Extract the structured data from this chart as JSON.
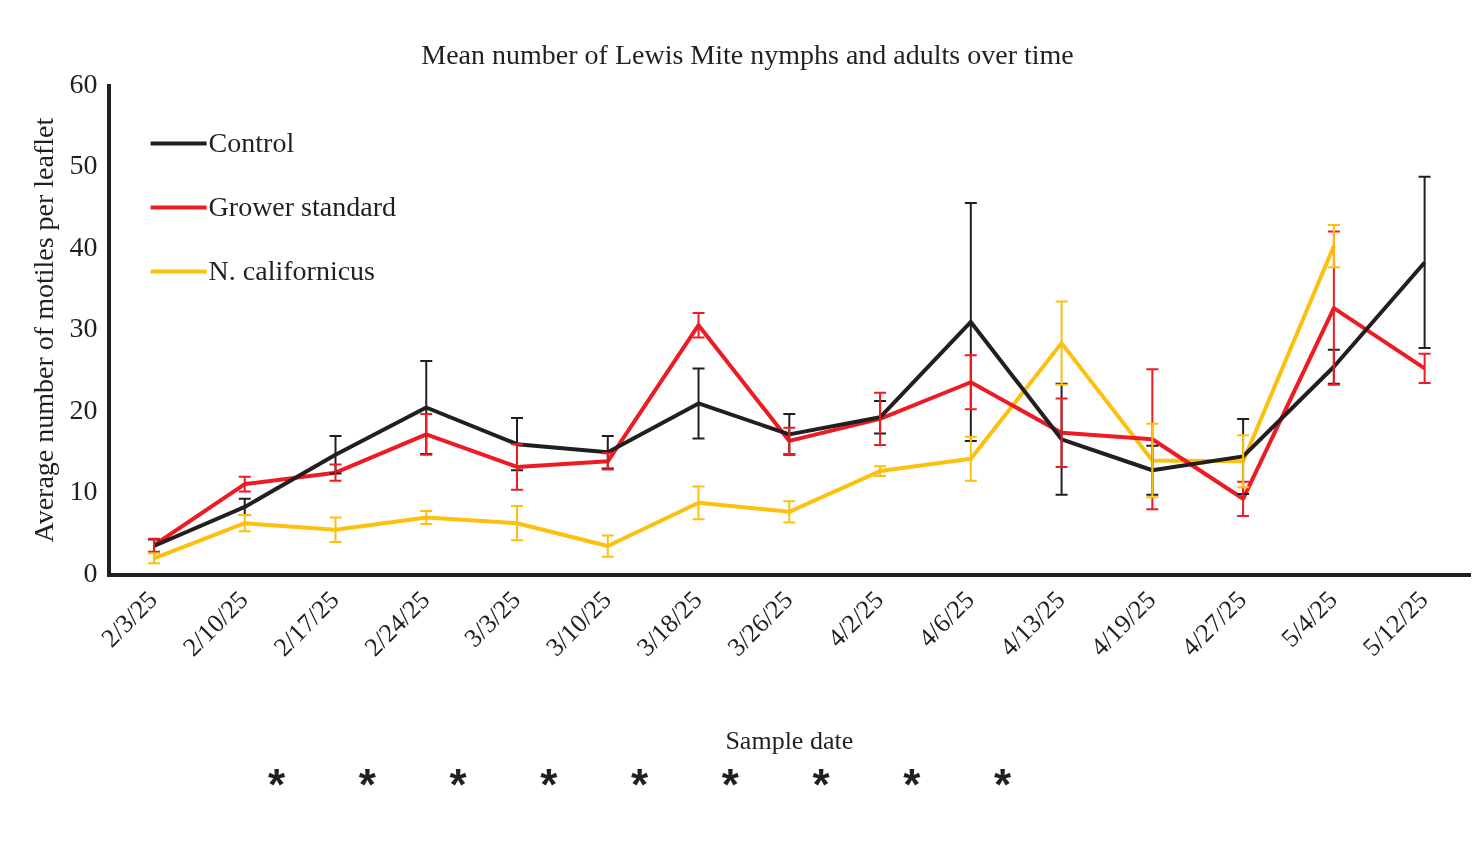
{
  "chart_data": {
    "type": "line",
    "title": "Mean number of Lewis Mite nymphs and adults over time",
    "xlabel": "Sample date",
    "ylabel": "Average number of motiles per leaflet",
    "categories": [
      "2/3/25",
      "2/10/25",
      "2/17/25",
      "2/24/25",
      "3/3/25",
      "3/10/25",
      "3/18/25",
      "3/26/25",
      "4/2/25",
      "4/6/25",
      "4/13/25",
      "4/19/25",
      "4/27/25",
      "5/4/25",
      "5/12/25"
    ],
    "ylim": [
      0,
      60
    ],
    "yticks": [
      0,
      10,
      20,
      30,
      40,
      50,
      60
    ],
    "grid": false,
    "legend": "top left",
    "marker": "none",
    "line_style": "solid",
    "annotations": [
      "*",
      "*",
      "*",
      "*",
      "*",
      "*",
      "*",
      "*",
      "*"
    ],
    "series": [
      {
        "name": "Control",
        "color": "#231f20",
        "values": [
          3.5,
          8.3,
          14.7,
          20.5,
          16,
          15,
          21,
          17.2,
          19.3,
          31,
          16.6,
          12.8,
          14.5,
          25.5,
          38.3
        ],
        "errors": [
          0.8,
          1,
          2.3,
          5.7,
          3.2,
          2,
          4.3,
          2.5,
          2,
          14.6,
          6.8,
          3,
          4.6,
          2.1,
          10.5
        ]
      },
      {
        "name": "Grower standard",
        "color": "#ed1c24",
        "values": [
          3.6,
          11.1,
          12.5,
          17.2,
          13.2,
          13.9,
          30.6,
          16.4,
          19.1,
          23.6,
          17.4,
          16.6,
          9.3,
          32.7,
          25.3
        ],
        "errors": [
          0.8,
          0.9,
          1,
          2.5,
          2.8,
          1,
          1.5,
          1.6,
          3.2,
          3.3,
          4.2,
          8.6,
          2.1,
          9.4,
          1.8
        ]
      },
      {
        "name": "N. californicus",
        "color": "#fcc00f",
        "values": [
          2,
          6.3,
          5.5,
          7,
          6.3,
          3.5,
          8.8,
          7.7,
          12.7,
          14.2,
          28.4,
          14,
          13.9,
          40.3,
          null
        ],
        "errors": [
          0.6,
          1,
          1.5,
          0.8,
          2.1,
          1.3,
          2,
          1.3,
          0.6,
          2.7,
          5.1,
          4.5,
          3.2,
          2.6,
          null
        ]
      }
    ]
  }
}
